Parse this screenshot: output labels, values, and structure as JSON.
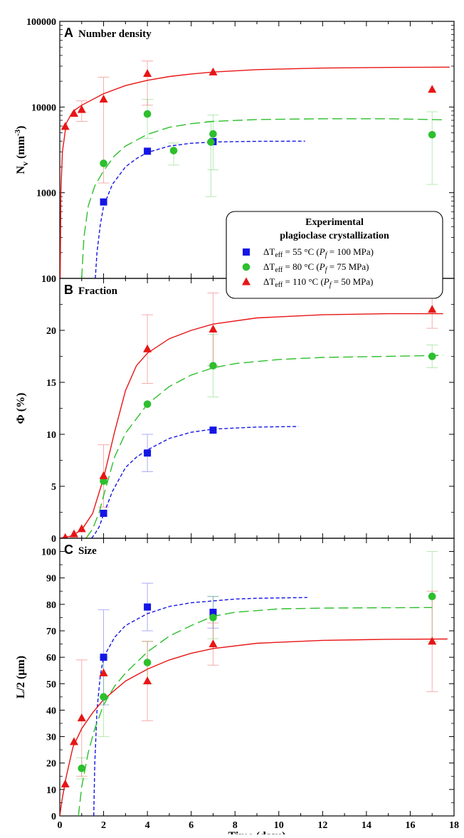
{
  "chart_data": [
    {
      "panel": "A",
      "title": "Number density",
      "type": "scatter",
      "ylabel_main": "N",
      "ylabel_sub": "v",
      "ylabel_unit": "(mm",
      "ylabel_sup": "-3",
      "ylabel_close": ")",
      "yscale": "log",
      "ylim": [
        100,
        100000
      ],
      "xlim": [
        0,
        18
      ],
      "yticks": [
        100,
        1000,
        10000,
        100000
      ],
      "ytick_labels": [
        "100",
        "1000",
        "10000",
        "100000"
      ],
      "series": [
        {
          "key": "s55",
          "points": [
            [
              2,
              780,
              0,
              0
            ],
            [
              4,
              3050,
              0,
              0
            ],
            [
              7,
              3950,
              0,
              0
            ]
          ],
          "fit": [
            [
              1.62,
              100
            ],
            [
              1.7,
              200
            ],
            [
              1.85,
              420
            ],
            [
              2,
              700
            ],
            [
              2.4,
              1250
            ],
            [
              3,
              2000
            ],
            [
              3.5,
              2500
            ],
            [
              4,
              2950
            ],
            [
              5,
              3500
            ],
            [
              6,
              3780
            ],
            [
              7,
              3900
            ],
            [
              8,
              3950
            ],
            [
              9,
              3975
            ],
            [
              11.2,
              3990
            ]
          ]
        },
        {
          "key": "s80",
          "points": [
            [
              2,
              2200,
              0,
              0
            ],
            [
              4,
              8300,
              4000,
              4000
            ],
            [
              5.2,
              3100,
              1000,
              700
            ],
            [
              6.9,
              3900,
              3000,
              2950
            ],
            [
              7,
              4850,
              3000,
              3200
            ],
            [
              17,
              4750,
              3500,
              4050
            ]
          ],
          "fit": [
            [
              1.0,
              100
            ],
            [
              1.1,
              300
            ],
            [
              1.3,
              700
            ],
            [
              1.6,
              1200
            ],
            [
              2,
              1800
            ],
            [
              2.5,
              2700
            ],
            [
              3,
              3500
            ],
            [
              4,
              4800
            ],
            [
              5,
              5800
            ],
            [
              6,
              6400
            ],
            [
              7,
              6800
            ],
            [
              9,
              7150
            ],
            [
              12,
              7300
            ],
            [
              15,
              7300
            ],
            [
              17.5,
              7100
            ]
          ]
        },
        {
          "key": "s110",
          "points": [
            [
              0.25,
              5900,
              0,
              0
            ],
            [
              0.65,
              8400,
              0,
              0
            ],
            [
              1.0,
              9300,
              2500,
              2500
            ],
            [
              2,
              12300,
              11000,
              10000
            ],
            [
              4,
              24500,
              14000,
              10000
            ],
            [
              7,
              25500,
              0,
              0
            ],
            [
              17,
              16000,
              0,
              0
            ]
          ],
          "fit": [
            [
              0.02,
              100
            ],
            [
              0.05,
              1000
            ],
            [
              0.12,
              3000
            ],
            [
              0.3,
              6500
            ],
            [
              0.6,
              8900
            ],
            [
              1,
              10500
            ],
            [
              2,
              14300
            ],
            [
              3,
              17800
            ],
            [
              4,
              20500
            ],
            [
              5,
              22700
            ],
            [
              6,
              24300
            ],
            [
              7,
              25600
            ],
            [
              9,
              27300
            ],
            [
              12,
              28500
            ],
            [
              15,
              29000
            ],
            [
              17.8,
              29200
            ]
          ]
        }
      ]
    },
    {
      "panel": "B",
      "title": "Fraction",
      "type": "scatter",
      "ylabel": "Φ (%)",
      "ylim": [
        0,
        25
      ],
      "xlim": [
        0,
        18
      ],
      "yticks": [
        0,
        5,
        10,
        15,
        20
      ],
      "ytick_labels": [
        "0",
        "5",
        "10",
        "15",
        "20"
      ],
      "series": [
        {
          "key": "s55",
          "points": [
            [
              2,
              2.4,
              0,
              0
            ],
            [
              4,
              8.2,
              1.8,
              1.8
            ],
            [
              7,
              10.4,
              0,
              0
            ]
          ],
          "fit": [
            [
              1.45,
              0
            ],
            [
              1.6,
              0.4
            ],
            [
              1.8,
              1.1
            ],
            [
              2,
              2.3
            ],
            [
              2.4,
              4.5
            ],
            [
              3,
              6.8
            ],
            [
              3.5,
              7.8
            ],
            [
              4,
              8.5
            ],
            [
              5,
              9.6
            ],
            [
              6,
              10.2
            ],
            [
              7,
              10.5
            ],
            [
              8,
              10.6
            ],
            [
              9,
              10.7
            ],
            [
              10.9,
              10.75
            ]
          ]
        },
        {
          "key": "s80",
          "points": [
            [
              2,
              5.5,
              0,
              0
            ],
            [
              4,
              12.9,
              0,
              0
            ],
            [
              7,
              16.6,
              3.0,
              3.0
            ],
            [
              17,
              17.5,
              1.1,
              1.1
            ]
          ],
          "fit": [
            [
              1.2,
              0
            ],
            [
              1.5,
              0.9
            ],
            [
              1.8,
              2.5
            ],
            [
              2,
              4.1
            ],
            [
              2.5,
              7.8
            ],
            [
              3,
              10.1
            ],
            [
              4,
              12.9
            ],
            [
              5,
              14.6
            ],
            [
              6,
              15.7
            ],
            [
              7,
              16.4
            ],
            [
              8,
              16.8
            ],
            [
              10,
              17.2
            ],
            [
              12,
              17.4
            ],
            [
              15,
              17.5
            ],
            [
              17.5,
              17.6
            ]
          ]
        },
        {
          "key": "s110",
          "points": [
            [
              0.25,
              0.05,
              0,
              0
            ],
            [
              0.65,
              0.4,
              0,
              0
            ],
            [
              1.0,
              0.9,
              0,
              0
            ],
            [
              2,
              6.0,
              3.0,
              3.0
            ],
            [
              4,
              18.2,
              3.3,
              3.3
            ],
            [
              7,
              20.1,
              3.5,
              3.5
            ],
            [
              17,
              22.0,
              1.8,
              1.8
            ]
          ],
          "fit": [
            [
              0,
              0
            ],
            [
              0.5,
              0.2
            ],
            [
              1,
              0.8
            ],
            [
              1.5,
              2.4
            ],
            [
              2,
              5.8
            ],
            [
              2.5,
              10.2
            ],
            [
              3,
              14.2
            ],
            [
              3.5,
              16.6
            ],
            [
              4,
              17.8
            ],
            [
              5,
              19.2
            ],
            [
              6,
              20.0
            ],
            [
              7,
              20.6
            ],
            [
              9,
              21.2
            ],
            [
              12,
              21.5
            ],
            [
              15,
              21.6
            ],
            [
              17.5,
              21.6
            ]
          ]
        }
      ]
    },
    {
      "panel": "C",
      "title": "Size",
      "type": "scatter",
      "ylabel": "L/2 (μm)",
      "ylim": [
        0,
        105
      ],
      "xlim": [
        0,
        18
      ],
      "xlabel": "Time (days)",
      "yticks": [
        0,
        10,
        20,
        30,
        40,
        50,
        60,
        70,
        80,
        90,
        100
      ],
      "ytick_labels": [
        "0",
        "10",
        "20",
        "30",
        "40",
        "50",
        "60",
        "70",
        "80",
        "90",
        "100"
      ],
      "xticks": [
        0,
        2,
        4,
        6,
        8,
        10,
        12,
        14,
        16,
        18
      ],
      "xtick_labels": [
        "0",
        "2",
        "4",
        "6",
        "8",
        "10",
        "12",
        "14",
        "16",
        "18"
      ],
      "series": [
        {
          "key": "s55",
          "points": [
            [
              2,
              60,
              18,
              18
            ],
            [
              4,
              79,
              9,
              9
            ],
            [
              7,
              77,
              6,
              6
            ]
          ],
          "fit": [
            [
              1.55,
              0
            ],
            [
              1.6,
              20
            ],
            [
              1.7,
              40
            ],
            [
              1.85,
              53
            ],
            [
              2,
              60
            ],
            [
              2.5,
              67.5
            ],
            [
              3,
              72
            ],
            [
              4,
              76.5
            ],
            [
              5,
              79.2
            ],
            [
              6,
              80.6
            ],
            [
              7,
              81.3
            ],
            [
              8,
              82
            ],
            [
              9,
              82.3
            ],
            [
              11.3,
              82.6
            ]
          ]
        },
        {
          "key": "s80",
          "points": [
            [
              1,
              18,
              4,
              4
            ],
            [
              2,
              45,
              15,
              15
            ],
            [
              4,
              58,
              8,
              8
            ],
            [
              7,
              75,
              8,
              8
            ],
            [
              17,
              83,
              17,
              17
            ]
          ],
          "fit": [
            [
              0.85,
              0
            ],
            [
              1,
              11
            ],
            [
              1.3,
              24
            ],
            [
              1.6,
              33
            ],
            [
              2,
              42
            ],
            [
              2.5,
              49
            ],
            [
              3,
              54
            ],
            [
              4,
              62
            ],
            [
              5,
              68
            ],
            [
              6,
              72
            ],
            [
              7,
              75.5
            ],
            [
              8,
              77
            ],
            [
              10,
              78.3
            ],
            [
              12,
              78.6
            ],
            [
              14,
              78.7
            ],
            [
              17,
              78.8
            ]
          ]
        },
        {
          "key": "s110",
          "points": [
            [
              0.25,
              12,
              0,
              0
            ],
            [
              0.65,
              28,
              0,
              0
            ],
            [
              1.0,
              37,
              22,
              22
            ],
            [
              2,
              54,
              0,
              0
            ],
            [
              4,
              51,
              15,
              15
            ],
            [
              7,
              65,
              8,
              8
            ],
            [
              17,
              66,
              19,
              19
            ]
          ],
          "fit": [
            [
              0,
              0
            ],
            [
              0.1,
              6
            ],
            [
              0.3,
              15
            ],
            [
              0.6,
              26
            ],
            [
              1,
              33
            ],
            [
              1.5,
              39
            ],
            [
              2,
              44
            ],
            [
              3,
              51
            ],
            [
              4,
              55.5
            ],
            [
              5,
              59
            ],
            [
              6,
              61.5
            ],
            [
              7,
              63.3
            ],
            [
              9,
              65.3
            ],
            [
              12,
              66.4
            ],
            [
              15,
              66.8
            ],
            [
              17.7,
              66.9
            ]
          ]
        }
      ]
    }
  ],
  "series_style": {
    "s55": {
      "color": "#1515e6",
      "marker": "square",
      "dash": "5,3"
    },
    "s80": {
      "color": "#2dbf2d",
      "marker": "circle",
      "dash": "14,6"
    },
    "s110": {
      "color": "#e81515",
      "marker": "triangle",
      "dash": ""
    }
  },
  "legend": {
    "title_line1": "Experimental",
    "title_line2": "plagioclase crystallization",
    "location": "panel A bottom-right",
    "entries": [
      {
        "key": "s55",
        "delta": "ΔT",
        "sub": "eff",
        "eq": " = 55 °C (",
        "p": "P",
        "psub": "f",
        "rest": " = 100 MPa)"
      },
      {
        "key": "s80",
        "delta": "ΔT",
        "sub": "eff",
        "eq": " = 80 °C (",
        "p": "P",
        "psub": "f",
        "rest": " = 75 MPa)"
      },
      {
        "key": "s110",
        "delta": "ΔT",
        "sub": "eff",
        "eq": " = 110 °C (",
        "p": "P",
        "psub": "f",
        "rest": " = 50 MPa)"
      }
    ]
  }
}
